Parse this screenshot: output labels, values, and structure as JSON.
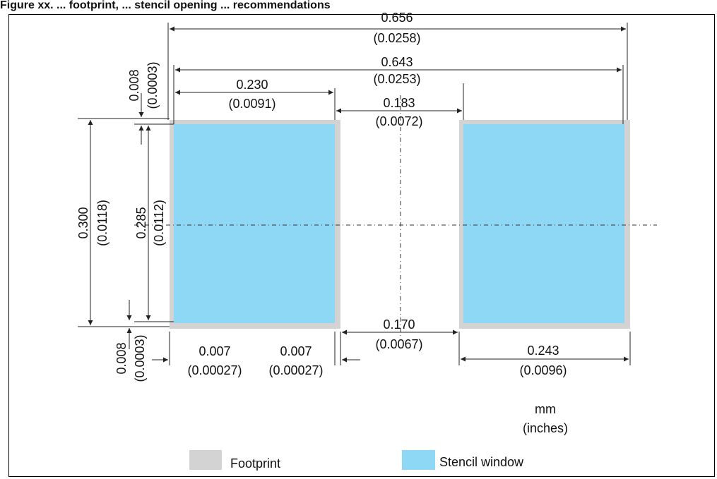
{
  "header": {
    "title": "Figure caption text truncated by screenshot"
  },
  "units": {
    "line1": "mm",
    "line2": "(inches)"
  },
  "legend": {
    "footprint_label": "Footprint",
    "stencil_label": "Stencil window",
    "footprint_color": "#d3d3d3",
    "stencil_color": "#8fd8f5"
  },
  "dims": {
    "total_width": {
      "mm": "0.656",
      "in": "(0.0258)"
    },
    "inner_width": {
      "mm": "0.643",
      "in": "(0.0253)"
    },
    "pad_left_width": {
      "mm": "0.230",
      "in": "(0.0091)"
    },
    "gap_top": {
      "mm": "0.183",
      "in": "(0.0072)"
    },
    "top_offset": {
      "mm": "0.008",
      "in": "(0.0003)"
    },
    "height": {
      "mm": "0.300",
      "in": "(0.0118)"
    },
    "inner_height": {
      "mm": "0.285",
      "in": "(0.0112)"
    },
    "bottom_offset": {
      "mm": "0.008",
      "in": "(0.0003)"
    },
    "left_margin": {
      "mm": "0.007",
      "in": "(0.00027)"
    },
    "right_margin": {
      "mm": "0.007",
      "in": "(0.00027)"
    },
    "gap_bottom": {
      "mm": "0.170",
      "in": "(0.0067)"
    },
    "pad_right_width": {
      "mm": "0.243",
      "in": "(0.0096)"
    }
  }
}
